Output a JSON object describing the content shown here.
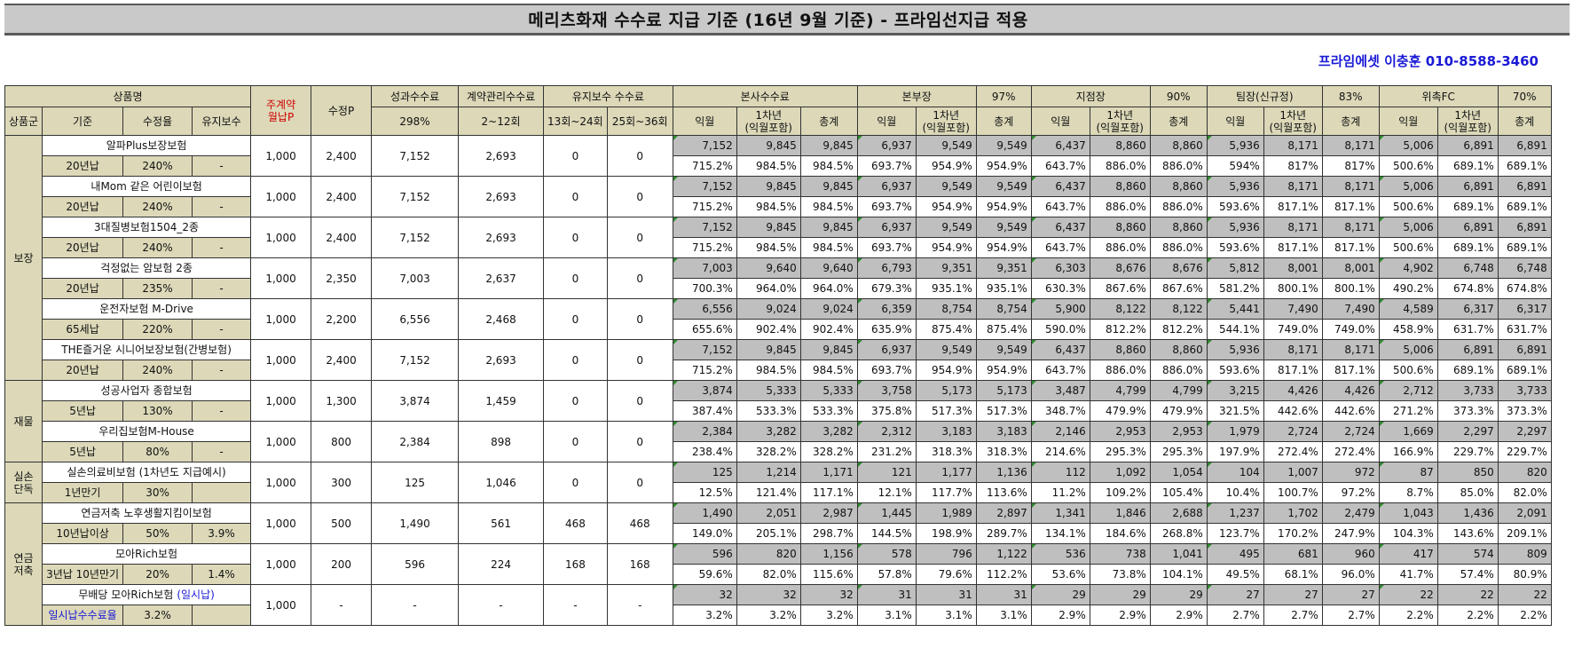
{
  "title": "메리츠화재 수수료 지급 기준 (16년 9월 기준) - 프라임선지급 적용",
  "contact": "프라임에셋 이충훈 010-8588-3460",
  "headers": {
    "product_name": "상품명",
    "category": "상품군",
    "basis": "기준",
    "rate": "수정율",
    "maint": "유지보수",
    "main_premium": "주계약\n월납P",
    "adj_premium": "수정P",
    "perf_fee": "성과수수료",
    "perf_pct": "298%",
    "contract_fee": "계약관리수수료",
    "contract_range": "2~12회",
    "maint_fee": "유지보수 수수료",
    "maint_13_24": "13회~24회",
    "maint_25_36": "25회~36회",
    "hq": "본사수수료",
    "bonbu": "본부장",
    "bonbu_pct": "97%",
    "branch": "지점장",
    "branch_pct": "90%",
    "team": "팀장(신규정)",
    "team_pct": "83%",
    "fc": "위촉FC",
    "fc_pct": "70%",
    "m1": "익월",
    "y1": "1차년\n(익월포함)",
    "total": "총계"
  },
  "categories": [
    {
      "name": "보장",
      "rows": 6
    },
    {
      "name": "재물",
      "rows": 2
    },
    {
      "name": "실손\n단독",
      "rows": 1
    },
    {
      "name": "연금\n저축",
      "rows": 3
    }
  ],
  "products": [
    {
      "name": "알파Plus보장보험",
      "basis": "20년납",
      "rate": "240%",
      "maint": "-",
      "main_p": "1,000",
      "adj_p": "2,400",
      "perf": "7,152",
      "contract": "2,693",
      "m13": "0",
      "m25": "0",
      "amt": [
        "7,152",
        "9,845",
        "9,845",
        "6,937",
        "9,549",
        "9,549",
        "6,437",
        "8,860",
        "8,860",
        "5,936",
        "8,171",
        "8,171",
        "5,006",
        "6,891",
        "6,891"
      ],
      "pct": [
        "715.2%",
        "984.5%",
        "984.5%",
        "693.7%",
        "954.9%",
        "954.9%",
        "643.7%",
        "886.0%",
        "886.0%",
        "594%",
        "817%",
        "817%",
        "500.6%",
        "689.1%",
        "689.1%"
      ]
    },
    {
      "name": "내Mom 같은 어린이보험",
      "basis": "20년납",
      "rate": "240%",
      "maint": "-",
      "main_p": "1,000",
      "adj_p": "2,400",
      "perf": "7,152",
      "contract": "2,693",
      "m13": "0",
      "m25": "0",
      "amt": [
        "7,152",
        "9,845",
        "9,845",
        "6,937",
        "9,549",
        "9,549",
        "6,437",
        "8,860",
        "8,860",
        "5,936",
        "8,171",
        "8,171",
        "5,006",
        "6,891",
        "6,891"
      ],
      "pct": [
        "715.2%",
        "984.5%",
        "984.5%",
        "693.7%",
        "954.9%",
        "954.9%",
        "643.7%",
        "886.0%",
        "886.0%",
        "593.6%",
        "817.1%",
        "817.1%",
        "500.6%",
        "689.1%",
        "689.1%"
      ]
    },
    {
      "name": "3대질병보험1504_2종",
      "basis": "20년납",
      "rate": "240%",
      "maint": "-",
      "main_p": "1,000",
      "adj_p": "2,400",
      "perf": "7,152",
      "contract": "2,693",
      "m13": "0",
      "m25": "0",
      "amt": [
        "7,152",
        "9,845",
        "9,845",
        "6,937",
        "9,549",
        "9,549",
        "6,437",
        "8,860",
        "8,860",
        "5,936",
        "8,171",
        "8,171",
        "5,006",
        "6,891",
        "6,891"
      ],
      "pct": [
        "715.2%",
        "984.5%",
        "984.5%",
        "693.7%",
        "954.9%",
        "954.9%",
        "643.7%",
        "886.0%",
        "886.0%",
        "593.6%",
        "817.1%",
        "817.1%",
        "500.6%",
        "689.1%",
        "689.1%"
      ]
    },
    {
      "name": "걱정없는 암보험 2종",
      "basis": "20년납",
      "rate": "235%",
      "maint": "-",
      "main_p": "1,000",
      "adj_p": "2,350",
      "perf": "7,003",
      "contract": "2,637",
      "m13": "0",
      "m25": "0",
      "amt": [
        "7,003",
        "9,640",
        "9,640",
        "6,793",
        "9,351",
        "9,351",
        "6,303",
        "8,676",
        "8,676",
        "5,812",
        "8,001",
        "8,001",
        "4,902",
        "6,748",
        "6,748"
      ],
      "pct": [
        "700.3%",
        "964.0%",
        "964.0%",
        "679.3%",
        "935.1%",
        "935.1%",
        "630.3%",
        "867.6%",
        "867.6%",
        "581.2%",
        "800.1%",
        "800.1%",
        "490.2%",
        "674.8%",
        "674.8%"
      ]
    },
    {
      "name": "운전자보험 M-Drive",
      "basis": "65세납",
      "rate": "220%",
      "maint": "-",
      "main_p": "1,000",
      "adj_p": "2,200",
      "perf": "6,556",
      "contract": "2,468",
      "m13": "0",
      "m25": "0",
      "amt": [
        "6,556",
        "9,024",
        "9,024",
        "6,359",
        "8,754",
        "8,754",
        "5,900",
        "8,122",
        "8,122",
        "5,441",
        "7,490",
        "7,490",
        "4,589",
        "6,317",
        "6,317"
      ],
      "pct": [
        "655.6%",
        "902.4%",
        "902.4%",
        "635.9%",
        "875.4%",
        "875.4%",
        "590.0%",
        "812.2%",
        "812.2%",
        "544.1%",
        "749.0%",
        "749.0%",
        "458.9%",
        "631.7%",
        "631.7%"
      ]
    },
    {
      "name": "THE즐거운 시니어보장보험(간병보험)",
      "basis": "20년납",
      "rate": "240%",
      "maint": "-",
      "main_p": "1,000",
      "adj_p": "2,400",
      "perf": "7,152",
      "contract": "2,693",
      "m13": "0",
      "m25": "0",
      "amt": [
        "7,152",
        "9,845",
        "9,845",
        "6,937",
        "9,549",
        "9,549",
        "6,437",
        "8,860",
        "8,860",
        "5,936",
        "8,171",
        "8,171",
        "5,006",
        "6,891",
        "6,891"
      ],
      "pct": [
        "715.2%",
        "984.5%",
        "984.5%",
        "693.7%",
        "954.9%",
        "954.9%",
        "643.7%",
        "886.0%",
        "886.0%",
        "593.6%",
        "817.1%",
        "817.1%",
        "500.6%",
        "689.1%",
        "689.1%"
      ]
    },
    {
      "name": "성공사업자 종합보험",
      "basis": "5년납",
      "rate": "130%",
      "maint": "-",
      "main_p": "1,000",
      "adj_p": "1,300",
      "perf": "3,874",
      "contract": "1,459",
      "m13": "0",
      "m25": "0",
      "amt": [
        "3,874",
        "5,333",
        "5,333",
        "3,758",
        "5,173",
        "5,173",
        "3,487",
        "4,799",
        "4,799",
        "3,215",
        "4,426",
        "4,426",
        "2,712",
        "3,733",
        "3,733"
      ],
      "pct": [
        "387.4%",
        "533.3%",
        "533.3%",
        "375.8%",
        "517.3%",
        "517.3%",
        "348.7%",
        "479.9%",
        "479.9%",
        "321.5%",
        "442.6%",
        "442.6%",
        "271.2%",
        "373.3%",
        "373.3%"
      ]
    },
    {
      "name": "우리집보험M-House",
      "basis": "5년납",
      "rate": "80%",
      "maint": "-",
      "main_p": "1,000",
      "adj_p": "800",
      "perf": "2,384",
      "contract": "898",
      "m13": "0",
      "m25": "0",
      "amt": [
        "2,384",
        "3,282",
        "3,282",
        "2,312",
        "3,183",
        "3,183",
        "2,146",
        "2,953",
        "2,953",
        "1,979",
        "2,724",
        "2,724",
        "1,669",
        "2,297",
        "2,297"
      ],
      "pct": [
        "238.4%",
        "328.2%",
        "328.2%",
        "231.2%",
        "318.3%",
        "318.3%",
        "214.6%",
        "295.3%",
        "295.3%",
        "197.9%",
        "272.4%",
        "272.4%",
        "166.9%",
        "229.7%",
        "229.7%"
      ]
    },
    {
      "name": "실손의료비보험 (1차년도 지급예시)",
      "basis": "1년만기",
      "rate": "30%",
      "maint": "",
      "main_p": "1,000",
      "adj_p": "300",
      "perf": "125",
      "contract": "1,046",
      "m13": "0",
      "m25": "0",
      "amt": [
        "125",
        "1,214",
        "1,171",
        "121",
        "1,177",
        "1,136",
        "112",
        "1,092",
        "1,054",
        "104",
        "1,007",
        "972",
        "87",
        "850",
        "820"
      ],
      "pct": [
        "12.5%",
        "121.4%",
        "117.1%",
        "12.1%",
        "117.7%",
        "113.6%",
        "11.2%",
        "109.2%",
        "105.4%",
        "10.4%",
        "100.7%",
        "97.2%",
        "8.7%",
        "85.0%",
        "82.0%"
      ]
    },
    {
      "name": "연금저축 노후생활지킴이보험",
      "basis": "10년납이상",
      "rate": "50%",
      "maint": "3.9%",
      "main_p": "1,000",
      "adj_p": "500",
      "perf": "1,490",
      "contract": "561",
      "m13": "468",
      "m25": "468",
      "amt": [
        "1,490",
        "2,051",
        "2,987",
        "1,445",
        "1,989",
        "2,897",
        "1,341",
        "1,846",
        "2,688",
        "1,237",
        "1,702",
        "2,479",
        "1,043",
        "1,436",
        "2,091"
      ],
      "pct": [
        "149.0%",
        "205.1%",
        "298.7%",
        "144.5%",
        "198.9%",
        "289.7%",
        "134.1%",
        "184.6%",
        "268.8%",
        "123.7%",
        "170.2%",
        "247.9%",
        "104.3%",
        "143.6%",
        "209.1%"
      ]
    },
    {
      "name": "모아Rich보험",
      "basis": "3년납 10년만기",
      "rate": "20%",
      "maint": "1.4%",
      "main_p": "1,000",
      "adj_p": "200",
      "perf": "596",
      "contract": "224",
      "m13": "168",
      "m25": "168",
      "amt": [
        "596",
        "820",
        "1,156",
        "578",
        "796",
        "1,122",
        "536",
        "738",
        "1,041",
        "495",
        "681",
        "960",
        "417",
        "574",
        "809"
      ],
      "pct": [
        "59.6%",
        "82.0%",
        "115.6%",
        "57.8%",
        "79.6%",
        "112.2%",
        "53.6%",
        "73.8%",
        "104.1%",
        "49.5%",
        "68.1%",
        "96.0%",
        "41.7%",
        "57.4%",
        "80.9%"
      ]
    },
    {
      "name": "무배당 모아Rich보험",
      "name_suffix": "(일시납)",
      "basis": "일시납수수료율",
      "rate": "3.2%",
      "maint": "",
      "main_p": "1,000",
      "adj_p": "-",
      "perf": "-",
      "contract": "-",
      "m13": "-",
      "m25": "-",
      "amt": [
        "32",
        "32",
        "32",
        "31",
        "31",
        "31",
        "29",
        "29",
        "29",
        "27",
        "27",
        "27",
        "22",
        "22",
        "22"
      ],
      "pct": [
        "3.2%",
        "3.2%",
        "3.2%",
        "3.1%",
        "3.1%",
        "3.1%",
        "2.9%",
        "2.9%",
        "2.9%",
        "2.7%",
        "2.7%",
        "2.7%",
        "2.2%",
        "2.2%",
        "2.2%"
      ]
    }
  ]
}
